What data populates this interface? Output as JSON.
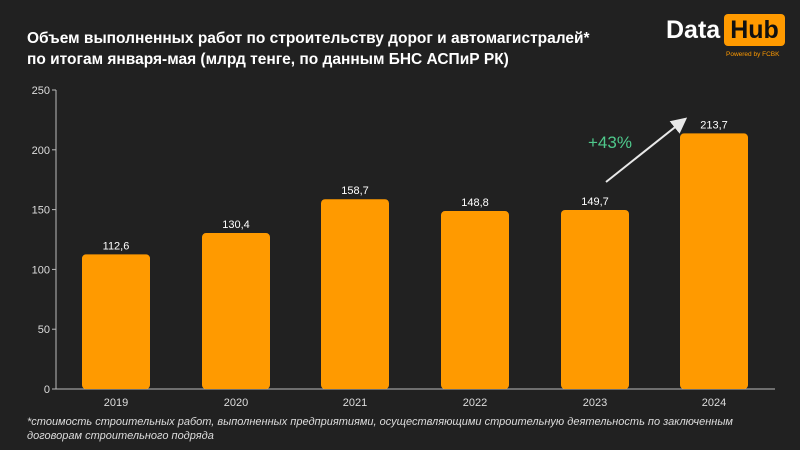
{
  "title_lines": [
    "Объем выполненных работ по строительству дорог и автомагистралей*",
    "по итогам января-мая (млрд тенге, по данным БНС АСПиР РК)"
  ],
  "logo": {
    "left": "Data",
    "right": "Hub",
    "powered": "Powered by FCBK"
  },
  "footnote": "*стоимость строительных работ, выполненных предприятиями, осуществляющими строительную деятельность по заключенным договорам строительного подряда",
  "colors": {
    "background": "#212121",
    "bar": "#ff9a00",
    "growth": "#4fc98c",
    "arrow": "#e8e8e8"
  },
  "chart_data": {
    "type": "bar",
    "title": "Объем выполненных работ по строительству дорог и автомагистралей* по итогам января-мая (млрд тенге, по данным БНС АСПиР РК)",
    "categories": [
      "2019",
      "2020",
      "2021",
      "2022",
      "2023",
      "2024"
    ],
    "values": [
      112.6,
      130.4,
      158.7,
      148.8,
      149.7,
      213.7
    ],
    "value_labels": [
      "112,6",
      "130,4",
      "158,7",
      "148,8",
      "149,7",
      "213,7"
    ],
    "ylim": [
      0,
      250
    ],
    "yticks": [
      0,
      50,
      100,
      150,
      200,
      250
    ],
    "grid": false,
    "annotation": {
      "text": "+43%",
      "from": "2023",
      "to": "2024"
    }
  }
}
